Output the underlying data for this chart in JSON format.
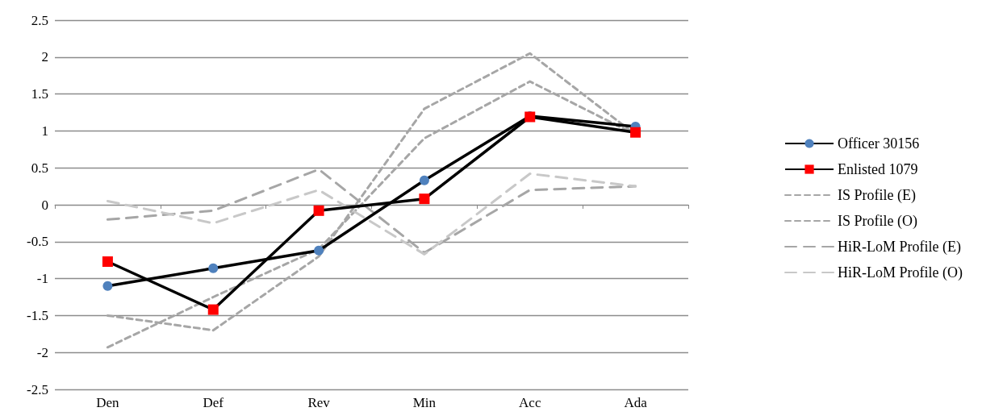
{
  "chart_data": {
    "type": "line",
    "categories": [
      "Den",
      "Def",
      "Rev",
      "Min",
      "Acc",
      "Ada"
    ],
    "ylim": [
      -2.5,
      2.5
    ],
    "yticks": [
      -2.5,
      -2,
      -1.5,
      -1,
      -0.5,
      0,
      0.5,
      1,
      1.5,
      2,
      2.5
    ],
    "grid": "y",
    "legend": "right",
    "series": [
      {
        "name": "Officer 30156",
        "color": "#000000",
        "colors": [
          "#4f81bd",
          "#4f81bd",
          "#4f81bd",
          "#4f81bd",
          "#4f81bd",
          "#4f81bd"
        ],
        "marker": "circle",
        "line_style": "solid",
        "values": [
          -1.1,
          -0.86,
          -0.62,
          0.33,
          1.2,
          1.06
        ]
      },
      {
        "name": "Enlisted 1079",
        "color": "#000000",
        "colors": [
          "#ff0000",
          "#ff0000",
          "#ff0000",
          "#ff0000",
          "#ff0000",
          "#ff0000"
        ],
        "marker": "square",
        "line_style": "solid",
        "values": [
          -0.77,
          -1.42,
          -0.08,
          0.08,
          1.19,
          0.98
        ]
      },
      {
        "name": "IS Profile (E)",
        "color": "#a6a6a6",
        "marker": "none",
        "line_style": "dashed",
        "values": [
          -1.5,
          -1.7,
          -0.7,
          1.3,
          2.05,
          0.95
        ]
      },
      {
        "name": "IS Profile (O)",
        "color": "#a6a6a6",
        "marker": "none",
        "line_style": "dashed",
        "values": [
          -1.93,
          -1.25,
          -0.6,
          0.9,
          1.67,
          0.95
        ]
      },
      {
        "name": "HiR-LoM Profile (E)",
        "color": "#a6a6a6",
        "marker": "none",
        "line_style": "longdash",
        "values": [
          -0.2,
          -0.08,
          0.48,
          -0.65,
          0.2,
          0.25
        ]
      },
      {
        "name": "HiR-LoM Profile (O)",
        "color": "#c8c8c8",
        "marker": "none",
        "line_style": "longdash",
        "values": [
          0.05,
          -0.25,
          0.2,
          -0.67,
          0.42,
          0.25
        ]
      }
    ]
  }
}
